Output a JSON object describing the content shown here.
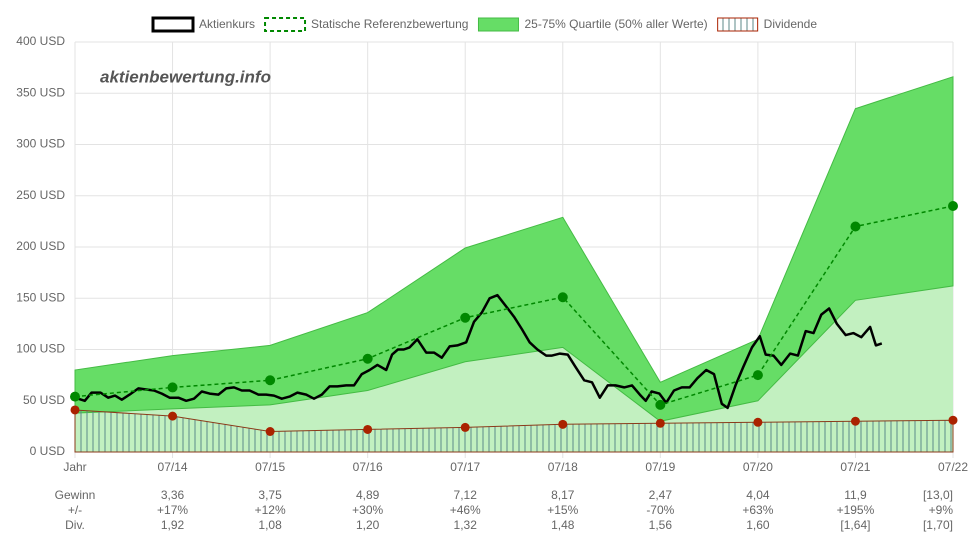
{
  "chart_data": {
    "type": "line",
    "watermark": "aktienbewertung.info",
    "xlim": [
      2013,
      2022
    ],
    "xticks": [
      {
        "value": 2013,
        "label": "Jahr"
      },
      {
        "value": 2014,
        "label": "07/14"
      },
      {
        "value": 2015,
        "label": "07/15"
      },
      {
        "value": 2016,
        "label": "07/16"
      },
      {
        "value": 2017,
        "label": "07/17"
      },
      {
        "value": 2018,
        "label": "07/18"
      },
      {
        "value": 2019,
        "label": "07/19"
      },
      {
        "value": 2020,
        "label": "07/20"
      },
      {
        "value": 2021,
        "label": "07/21"
      },
      {
        "value": 2022,
        "label": "07/22"
      }
    ],
    "ylim": [
      0,
      400
    ],
    "yticks": [
      {
        "value": 0,
        "label": "0 USD"
      },
      {
        "value": 50,
        "label": "50 USD"
      },
      {
        "value": 100,
        "label": "100 USD"
      },
      {
        "value": 150,
        "label": "150 USD"
      },
      {
        "value": 200,
        "label": "200 USD"
      },
      {
        "value": 250,
        "label": "250 USD"
      },
      {
        "value": 300,
        "label": "300 USD"
      },
      {
        "value": 350,
        "label": "350 USD"
      },
      {
        "value": 400,
        "label": "400 USD"
      }
    ],
    "grid": true,
    "legend": "top",
    "series": [
      {
        "name": "Aktienkurs",
        "kind": "line",
        "style": "solid",
        "color": "#000000",
        "x": [
          2013.0,
          2013.1,
          2013.17,
          2013.26,
          2013.34,
          2013.41,
          2013.48,
          2013.56,
          2013.65,
          2013.73,
          2013.81,
          2013.89,
          2013.97,
          2014.06,
          2014.14,
          2014.22,
          2014.3,
          2014.38,
          2014.47,
          2014.55,
          2014.63,
          2014.71,
          2014.79,
          2014.88,
          2014.96,
          2015.04,
          2015.12,
          2015.2,
          2015.28,
          2015.37,
          2015.45,
          2015.53,
          2015.61,
          2015.69,
          2015.78,
          2015.86,
          2015.94,
          2016.02,
          2016.1,
          2016.19,
          2016.25,
          2016.31,
          2016.37,
          2016.43,
          2016.51,
          2016.6,
          2016.68,
          2016.76,
          2016.84,
          2016.92,
          2017.01,
          2017.09,
          2017.17,
          2017.25,
          2017.33,
          2017.42,
          2017.5,
          2017.58,
          2017.66,
          2017.74,
          2017.83,
          2017.89,
          2017.97,
          2018.05,
          2018.13,
          2018.22,
          2018.3,
          2018.38,
          2018.46,
          2018.54,
          2018.63,
          2018.71,
          2018.79,
          2018.85,
          2018.91,
          2018.99,
          2019.06,
          2019.14,
          2019.22,
          2019.3,
          2019.38,
          2019.47,
          2019.55,
          2019.63,
          2019.69,
          2019.77,
          2019.85,
          2019.94,
          2020.02,
          2020.08,
          2020.16,
          2020.24,
          2020.33,
          2020.41,
          2020.49,
          2020.57,
          2020.65,
          2020.73,
          2020.81,
          2020.9,
          2020.98,
          2021.06,
          2021.15,
          2021.21,
          2021.27
        ],
        "values": [
          53,
          50,
          58,
          58,
          53,
          55,
          51,
          56,
          62,
          61,
          60,
          57,
          53,
          53,
          50,
          52,
          59,
          57,
          56,
          62,
          63,
          60,
          60,
          56,
          56,
          55,
          52,
          54,
          58,
          56,
          52,
          56,
          64,
          64,
          65,
          65,
          76,
          80,
          85,
          80,
          95,
          100,
          100,
          102,
          110,
          97,
          97,
          92,
          103,
          104,
          107,
          127,
          136,
          150,
          153,
          142,
          132,
          120,
          107,
          100,
          94,
          94,
          96,
          95,
          83,
          70,
          68,
          53,
          65,
          65,
          63,
          65,
          56,
          50,
          59,
          57,
          48,
          60,
          63,
          63,
          72,
          80,
          76,
          47,
          43,
          65,
          83,
          102,
          113,
          95,
          94,
          85,
          96,
          94,
          118,
          116,
          134,
          140,
          125,
          114,
          116,
          112,
          122,
          104,
          106
        ]
      },
      {
        "name": "Statische Referenzbewertung",
        "kind": "line",
        "style": "dashed",
        "markers": true,
        "color": "#008800",
        "x": [
          2013,
          2014,
          2015,
          2016,
          2017,
          2018,
          2019,
          2020,
          2021,
          2022
        ],
        "values": [
          54,
          63,
          70,
          91,
          131,
          151,
          46,
          75,
          220,
          240
        ]
      },
      {
        "name": "25-75% Quartile (50% aller Werte)",
        "kind": "band",
        "color": "#66dd66",
        "lower_color": "#c2f0c0",
        "x": [
          2013,
          2014,
          2015,
          2016,
          2017,
          2018,
          2019,
          2020,
          2021,
          2022
        ],
        "low": [
          38,
          42,
          46,
          60,
          88,
          102,
          30,
          50,
          148,
          162
        ],
        "high": [
          80,
          94,
          104,
          136,
          199,
          229,
          68,
          110,
          335,
          366
        ]
      },
      {
        "name": "Dividende",
        "kind": "hatched",
        "markers": true,
        "color": "#aa2200",
        "hatch_color": "#5c8a8a",
        "x": [
          2013,
          2014,
          2015,
          2016,
          2017,
          2018,
          2019,
          2020,
          2021,
          2022
        ],
        "values": [
          41,
          35,
          20,
          22,
          24,
          27,
          28,
          29,
          30,
          31
        ]
      }
    ]
  },
  "table": {
    "rows": [
      {
        "label": "Gewinn",
        "cells": [
          "3,36",
          "3,75",
          "4,89",
          "7,12",
          "8,17",
          "2,47",
          "4,04",
          "11,9",
          "[13,0]"
        ]
      },
      {
        "label": "+/-",
        "cells": [
          "+17%",
          "+12%",
          "+30%",
          "+46%",
          "+15%",
          "-70%",
          "+63%",
          "+195%",
          "+9%"
        ]
      },
      {
        "label": "Div.",
        "cells": [
          "1,92",
          "1,08",
          "1,20",
          "1,32",
          "1,48",
          "1,56",
          "1,60",
          "[1,64]",
          "[1,70]"
        ]
      }
    ]
  }
}
